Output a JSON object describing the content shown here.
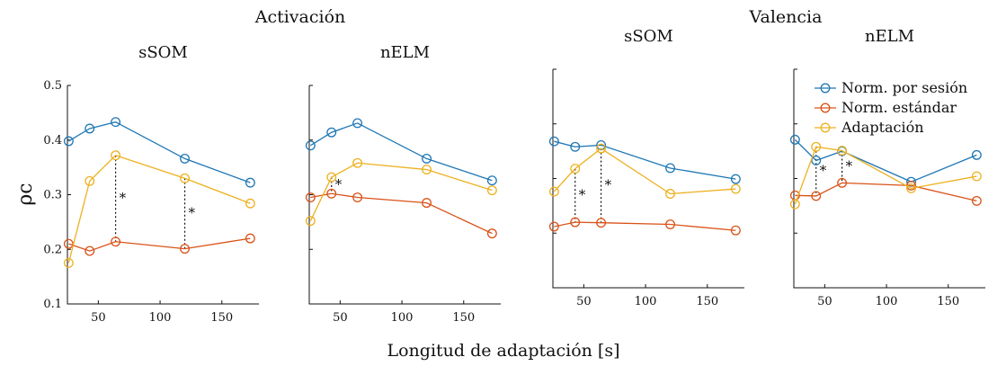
{
  "figure": {
    "group_titles": [
      "Activación",
      "Valencia"
    ],
    "xlabel": "Longitud de adaptación [s]",
    "ylabel": "ρc"
  },
  "legend": {
    "entries": [
      {
        "label": "Norm. por sesión",
        "color": "#1f77b4"
      },
      {
        "label": "Norm. estándar",
        "color": "#d95319"
      },
      {
        "label": "Adaptación",
        "color": "#edb120"
      }
    ]
  },
  "chart_data": [
    {
      "type": "line",
      "title": "sSOM",
      "xlim": [
        25,
        180
      ],
      "ylim": [
        0.1,
        0.5
      ],
      "xticks": [
        50,
        100,
        150
      ],
      "yticks": [
        0.1,
        0.2,
        0.3,
        0.4,
        0.5
      ],
      "x": [
        26,
        43,
        64,
        120,
        173
      ],
      "series": [
        {
          "name": "Norm. por sesión",
          "values": [
            0.398,
            0.421,
            0.433,
            0.366,
            0.322
          ]
        },
        {
          "name": "Norm. estándar",
          "values": [
            0.21,
            0.197,
            0.214,
            0.201,
            0.22
          ]
        },
        {
          "name": "Adaptación",
          "values": [
            0.175,
            0.325,
            0.372,
            0.33,
            0.284
          ]
        }
      ],
      "significance": [
        {
          "x": 64,
          "label": "*"
        },
        {
          "x": 120,
          "label": "*"
        }
      ]
    },
    {
      "type": "line",
      "title": "nELM",
      "xlim": [
        25,
        180
      ],
      "ylim": [
        0.1,
        0.5
      ],
      "xticks": [
        50,
        100,
        150
      ],
      "yticks": [],
      "x": [
        26,
        43,
        64,
        120,
        173
      ],
      "series": [
        {
          "name": "Norm. por sesión",
          "values": [
            0.39,
            0.414,
            0.431,
            0.366,
            0.326
          ]
        },
        {
          "name": "Norm. estándar",
          "values": [
            0.295,
            0.302,
            0.295,
            0.285,
            0.229
          ]
        },
        {
          "name": "Adaptación",
          "values": [
            0.252,
            0.332,
            0.358,
            0.346,
            0.308
          ]
        }
      ],
      "significance": [
        {
          "x": 43,
          "label": "*"
        }
      ]
    },
    {
      "type": "line",
      "title": "sSOM",
      "xlim": [
        25,
        180
      ],
      "ylim": [
        0.1,
        0.5
      ],
      "xticks": [
        50,
        100,
        150
      ],
      "yticks": [],
      "x": [
        26,
        43,
        64,
        120,
        173
      ],
      "series": [
        {
          "name": "Norm. por sesión",
          "values": [
            0.368,
            0.358,
            0.361,
            0.319,
            0.299
          ]
        },
        {
          "name": "Norm. estándar",
          "values": [
            0.212,
            0.22,
            0.219,
            0.216,
            0.205
          ]
        },
        {
          "name": "Adaptación",
          "values": [
            0.276,
            0.318,
            0.355,
            0.272,
            0.281
          ]
        }
      ],
      "significance": [
        {
          "x": 43,
          "label": "*"
        },
        {
          "x": 64,
          "label": "*"
        }
      ]
    },
    {
      "type": "line",
      "title": "nELM",
      "xlim": [
        25,
        180
      ],
      "ylim": [
        0.1,
        0.5
      ],
      "xticks": [
        50,
        100,
        150
      ],
      "yticks": [],
      "x": [
        26,
        43,
        64,
        120,
        173
      ],
      "series": [
        {
          "name": "Norm. por sesión",
          "values": [
            0.371,
            0.333,
            0.35,
            0.294,
            0.343
          ]
        },
        {
          "name": "Norm. estándar",
          "values": [
            0.269,
            0.268,
            0.292,
            0.287,
            0.259
          ]
        },
        {
          "name": "Adaptación",
          "values": [
            0.253,
            0.358,
            0.351,
            0.282,
            0.304
          ]
        }
      ],
      "significance": [
        {
          "x": 43,
          "label": "*"
        },
        {
          "x": 64,
          "label": "*"
        }
      ]
    }
  ]
}
